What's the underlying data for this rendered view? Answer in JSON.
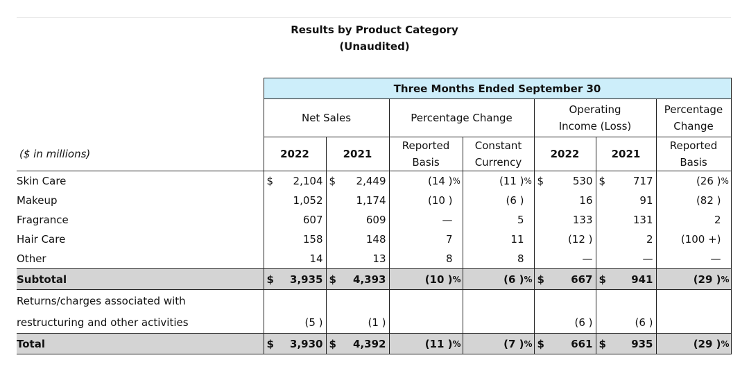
{
  "title": {
    "line1": "Results by Product Category",
    "line2": "(Unaudited)"
  },
  "banner": "Three Months Ended September 30",
  "headers": {
    "net_sales": "Net Sales",
    "percentage_change": "Percentage Change",
    "operating_income_l1": "Operating",
    "operating_income_l2": "Income (Loss)",
    "percentage_change_r_l1": "Percentage",
    "percentage_change_r_l2": "Change",
    "units": "($ in millions)",
    "y2022": "2022",
    "y2021": "2021",
    "reported_l1": "Reported",
    "reported_l2": "Basis",
    "constant_l1": "Constant",
    "constant_l2": "Currency",
    "oi_2022": "2022",
    "oi_2021": "2021",
    "rep2_l1": "Reported",
    "rep2_l2": "Basis"
  },
  "currency_symbol": "$",
  "rows": [
    {
      "label": "Skin Care",
      "ns22": "2,104",
      "ns21": "2,449",
      "rep": "(14 )",
      "rep_pct": "%",
      "cc": "(11 )",
      "cc_pct": "%",
      "oi22": "530",
      "oi21": "717",
      "oirep": "(26 )",
      "oirep_pct": "%"
    },
    {
      "label": "Makeup",
      "ns22": "1,052",
      "ns21": "1,174",
      "rep": "(10 )",
      "cc": "(6 )",
      "oi22": "16",
      "oi21": "91",
      "oirep": "(82 )"
    },
    {
      "label": "Fragrance",
      "ns22": "607",
      "ns21": "609",
      "rep": "—",
      "cc": "5",
      "oi22": "133",
      "oi21": "131",
      "oirep": "2"
    },
    {
      "label": "Hair Care",
      "ns22": "158",
      "ns21": "148",
      "rep": "7",
      "cc": "11",
      "oi22": "(12 )",
      "oi21": "2",
      "oirep": "(100 +)"
    },
    {
      "label": "Other",
      "ns22": "14",
      "ns21": "13",
      "rep": "8",
      "cc": "8",
      "oi22": "—",
      "oi21": "—",
      "oirep": "—"
    }
  ],
  "subtotal": {
    "label": "Subtotal",
    "ns22": "3,935",
    "ns21": "4,393",
    "rep": "(10 )",
    "rep_pct": "%",
    "cc": "(6 )",
    "cc_pct": "%",
    "oi22": "667",
    "oi21": "941",
    "oirep": "(29 )",
    "oirep_pct": "%"
  },
  "returns": {
    "label_l1": "Returns/charges associated with",
    "label_l2": "restructuring and other activities",
    "ns22": "(5 )",
    "ns21": "(1 )",
    "oi22": "(6 )",
    "oi21": "(6 )"
  },
  "total": {
    "label": "Total",
    "ns22": "3,930",
    "ns21": "4,392",
    "rep": "(11 )",
    "rep_pct": "%",
    "cc": "(7 )",
    "cc_pct": "%",
    "oi22": "661",
    "oi21": "935",
    "oirep": "(29 )",
    "oirep_pct": "%"
  }
}
